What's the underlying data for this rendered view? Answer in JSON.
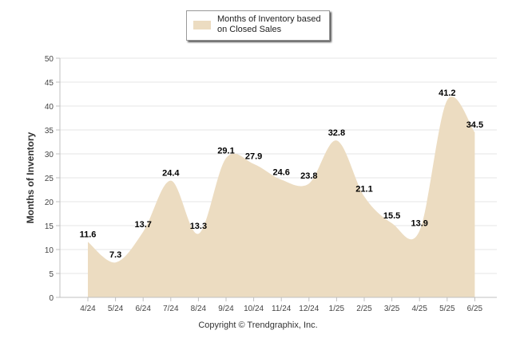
{
  "chart_data": {
    "type": "area",
    "categories": [
      "4/24",
      "5/24",
      "6/24",
      "7/24",
      "8/24",
      "9/24",
      "10/24",
      "11/24",
      "12/24",
      "1/25",
      "2/25",
      "3/25",
      "4/25",
      "5/25",
      "6/25"
    ],
    "series": [
      {
        "name": "Months of Inventory based on Closed Sales",
        "values": [
          11.6,
          7.3,
          13.7,
          24.4,
          13.3,
          29.1,
          27.9,
          24.6,
          23.8,
          32.8,
          21.1,
          15.5,
          13.9,
          41.2,
          34.5
        ]
      }
    ],
    "ylabel": "Months of Inventory",
    "xlabel": "",
    "ylim": [
      0,
      50
    ],
    "yticks": [
      0,
      5,
      10,
      15,
      20,
      25,
      30,
      35,
      40,
      45,
      50
    ],
    "grid": true,
    "legend_position": "top",
    "fill_color": "#ecdcc1",
    "footer": "Copyright © Trendgraphix, Inc."
  }
}
